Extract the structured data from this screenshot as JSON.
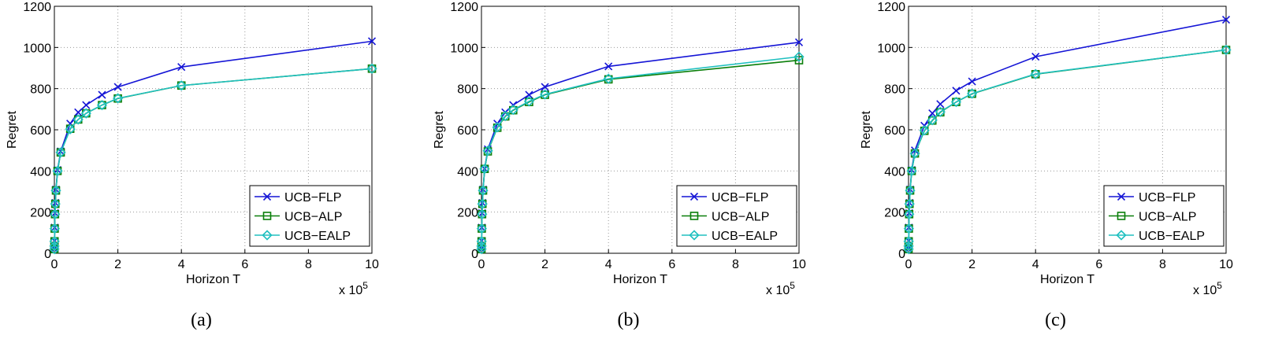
{
  "chart_data": [
    {
      "type": "line",
      "caption": "(a)",
      "xlabel": "Horizon  T",
      "ylabel": "Regret",
      "x_multiplier": "x 10",
      "x_multiplier_exp": "5",
      "x": [
        0.001,
        0.002,
        0.005,
        0.01,
        0.02,
        0.03,
        0.05,
        0.1,
        0.2,
        0.5,
        0.75,
        1,
        1.5,
        2,
        4,
        10
      ],
      "series": [
        {
          "name": "UCB−FLP",
          "color": "#1515d6",
          "marker": "x",
          "values": [
            20,
            35,
            60,
            125,
            195,
            245,
            310,
            405,
            495,
            630,
            685,
            720,
            770,
            808,
            905,
            1030
          ]
        },
        {
          "name": "UCB−ALP",
          "color": "#0a7f0a",
          "marker": "square",
          "values": [
            20,
            35,
            58,
            120,
            190,
            240,
            305,
            400,
            490,
            605,
            650,
            680,
            720,
            752,
            815,
            897
          ]
        },
        {
          "name": "UCB−EALP",
          "color": "#20c0c0",
          "marker": "diamond",
          "values": [
            20,
            35,
            58,
            120,
            190,
            240,
            305,
            400,
            490,
            603,
            650,
            680,
            720,
            753,
            815,
            897
          ]
        }
      ],
      "xlim": [
        0,
        10
      ],
      "xticks": [
        0,
        2,
        4,
        6,
        8,
        10
      ],
      "ylim": [
        0,
        1200
      ],
      "yticks": [
        0,
        200,
        400,
        600,
        800,
        1000,
        1200
      ],
      "grid": true,
      "legend": "lower right"
    },
    {
      "type": "line",
      "caption": "(b)",
      "xlabel": "Horizon  T",
      "ylabel": "Regret",
      "x_multiplier": "x 10",
      "x_multiplier_exp": "5",
      "x": [
        0.001,
        0.002,
        0.005,
        0.01,
        0.02,
        0.03,
        0.05,
        0.1,
        0.2,
        0.5,
        0.75,
        1,
        1.5,
        2,
        4,
        10
      ],
      "series": [
        {
          "name": "UCB−FLP",
          "color": "#1515d6",
          "marker": "x",
          "values": [
            20,
            35,
            60,
            125,
            195,
            245,
            310,
            410,
            505,
            630,
            685,
            720,
            770,
            808,
            908,
            1025
          ]
        },
        {
          "name": "UCB−ALP",
          "color": "#0a7f0a",
          "marker": "square",
          "values": [
            20,
            35,
            58,
            120,
            190,
            240,
            305,
            410,
            495,
            610,
            665,
            695,
            735,
            770,
            845,
            938
          ]
        },
        {
          "name": "UCB−EALP",
          "color": "#20c0c0",
          "marker": "diamond",
          "values": [
            20,
            35,
            58,
            120,
            190,
            240,
            305,
            410,
            498,
            612,
            667,
            697,
            738,
            772,
            848,
            955
          ]
        }
      ],
      "xlim": [
        0,
        10
      ],
      "xticks": [
        0,
        2,
        4,
        6,
        8,
        10
      ],
      "ylim": [
        0,
        1200
      ],
      "yticks": [
        0,
        200,
        400,
        600,
        800,
        1000,
        1200
      ],
      "grid": true,
      "legend": "lower right"
    },
    {
      "type": "line",
      "caption": "(c)",
      "xlabel": "Horizon  T",
      "ylabel": "Regret",
      "x_multiplier": "x 10",
      "x_multiplier_exp": "5",
      "x": [
        0.001,
        0.002,
        0.005,
        0.01,
        0.02,
        0.03,
        0.05,
        0.1,
        0.2,
        0.5,
        0.75,
        1,
        1.5,
        2,
        4,
        10
      ],
      "series": [
        {
          "name": "UCB−FLP",
          "color": "#1515d6",
          "marker": "x",
          "values": [
            20,
            35,
            60,
            125,
            195,
            245,
            310,
            405,
            500,
            620,
            680,
            725,
            790,
            835,
            955,
            1135
          ]
        },
        {
          "name": "UCB−ALP",
          "color": "#0a7f0a",
          "marker": "square",
          "values": [
            20,
            35,
            58,
            120,
            190,
            240,
            305,
            400,
            485,
            595,
            645,
            685,
            735,
            775,
            870,
            988
          ]
        },
        {
          "name": "UCB−EALP",
          "color": "#20c0c0",
          "marker": "diamond",
          "values": [
            20,
            35,
            58,
            120,
            190,
            240,
            305,
            400,
            485,
            597,
            647,
            687,
            735,
            776,
            871,
            988
          ]
        }
      ],
      "xlim": [
        0,
        10
      ],
      "xticks": [
        0,
        2,
        4,
        6,
        8,
        10
      ],
      "ylim": [
        0,
        1200
      ],
      "yticks": [
        0,
        200,
        400,
        600,
        800,
        1000,
        1200
      ],
      "grid": true,
      "legend": "lower right"
    }
  ]
}
